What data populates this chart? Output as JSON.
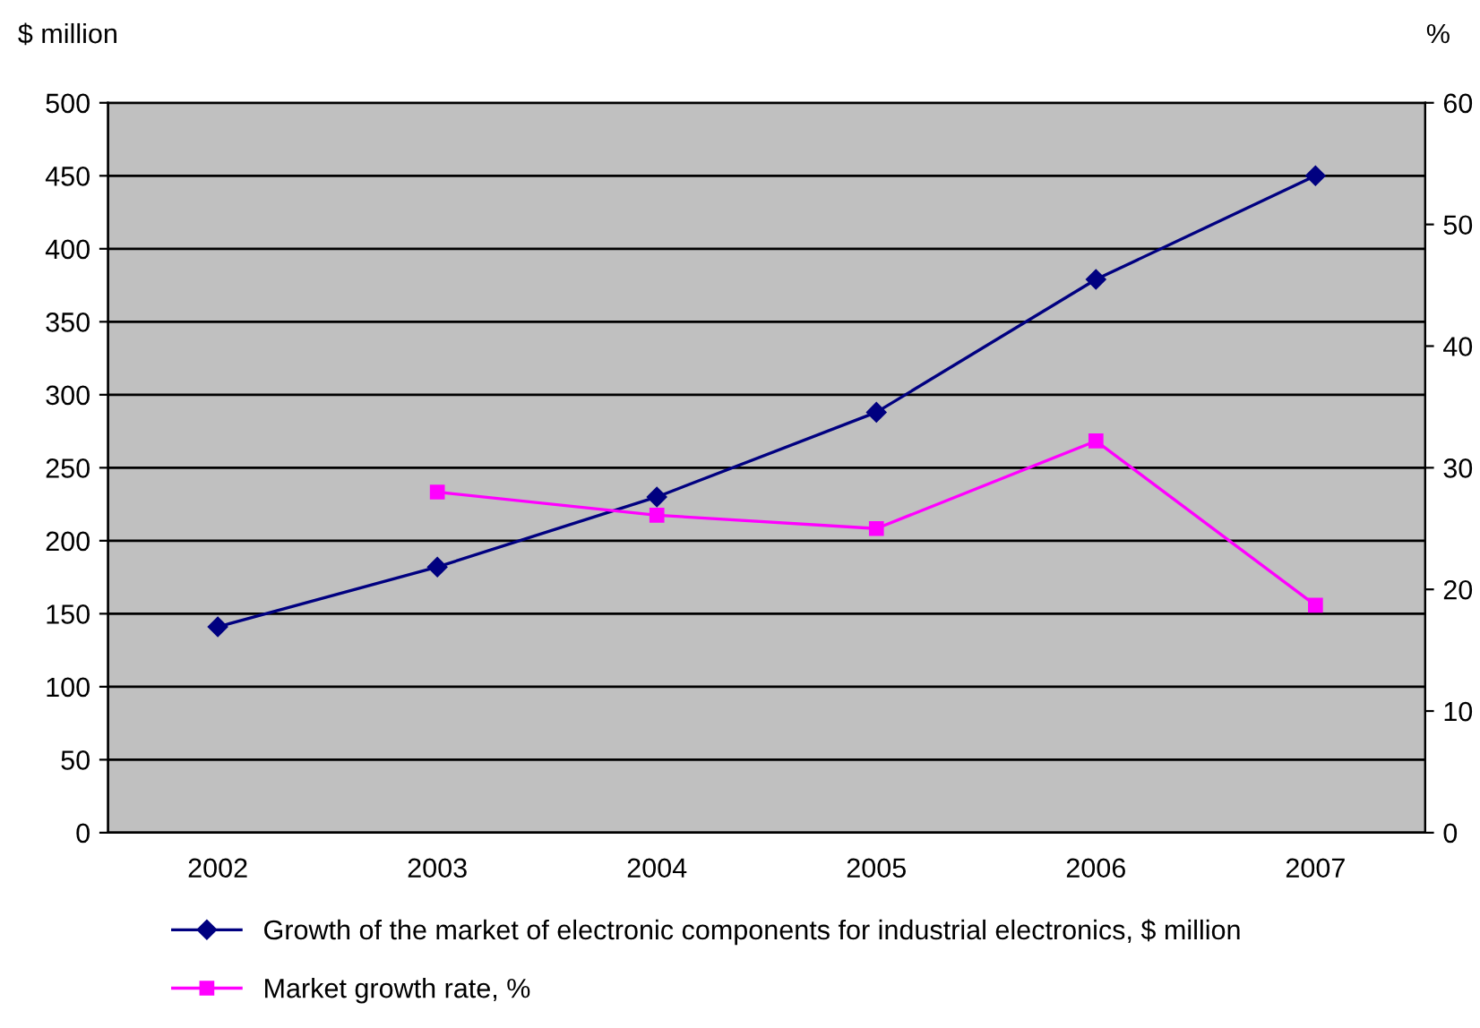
{
  "chart_data": {
    "type": "line",
    "ylabel": "$ million",
    "y2label": "%",
    "categories": [
      "2002",
      "2003",
      "2004",
      "2005",
      "2006",
      "2007"
    ],
    "series": [
      {
        "name": "Growth of the market of electronic components for industrial electronics, $ million",
        "color": "#000080",
        "marker": "diamond",
        "values": [
          141,
          182,
          230,
          288,
          379,
          450
        ]
      },
      {
        "name": "Market growth rate, %",
        "color": "#ff00ff",
        "marker": "square",
        "axis": "y2",
        "values": [
          null,
          28.0,
          26.1,
          25.0,
          32.2,
          18.7
        ]
      }
    ],
    "ylim": [
      0,
      500
    ],
    "yticks": [
      0,
      50,
      100,
      150,
      200,
      250,
      300,
      350,
      400,
      450,
      500
    ],
    "y2lim": [
      0,
      60
    ],
    "y2ticks": [
      0,
      10,
      20,
      30,
      40,
      50,
      60
    ],
    "grid": "y",
    "legend": "bottom"
  }
}
